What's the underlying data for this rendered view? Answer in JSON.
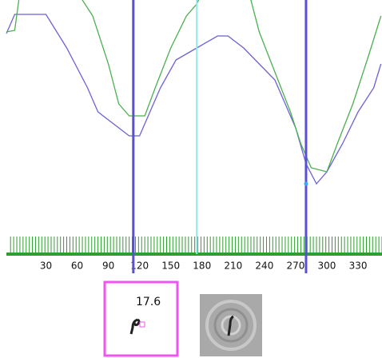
{
  "chart_data": {
    "type": "line",
    "xlim": [
      -8,
      353
    ],
    "ylim": [
      0,
      320
    ],
    "xticks": [
      30,
      60,
      90,
      120,
      150,
      180,
      210,
      240,
      270,
      300,
      330
    ],
    "minor_tick_step": 3,
    "axis_color": "#2e9e2e",
    "series": [
      {
        "color": "#6b62d6",
        "x": [
          -8,
          0,
          30,
          50,
          70,
          80,
          110,
          120,
          130,
          140,
          155,
          175,
          195,
          205,
          220,
          235,
          250,
          260,
          270,
          280,
          290,
          300,
          315,
          330,
          345,
          352
        ],
        "values": [
          278,
          302,
          302,
          260,
          210,
          180,
          150,
          150,
          180,
          210,
          245,
          260,
          275,
          275,
          260,
          240,
          220,
          190,
          160,
          115,
          90,
          105,
          140,
          180,
          210,
          240
        ]
      },
      {
        "color": "#4caf50",
        "x": [
          -8,
          0,
          5,
          60,
          75,
          90,
          100,
          110,
          125,
          135,
          150,
          165,
          175,
          180,
          225,
          235,
          250,
          265,
          275,
          285,
          300,
          310,
          325,
          340,
          352
        ],
        "values": [
          280,
          282,
          330,
          330,
          300,
          240,
          190,
          175,
          175,
          210,
          260,
          300,
          315,
          330,
          330,
          280,
          230,
          180,
          140,
          110,
          105,
          140,
          190,
          250,
          300
        ]
      }
    ],
    "cursors": [
      {
        "x": 114,
        "color": "#5a4fd8"
      },
      {
        "x": 175,
        "color": "#8eeaea"
      },
      {
        "x": 280,
        "color": "#5a4fd8"
      }
    ],
    "cursor_point": {
      "x": 280,
      "y": 90,
      "color": "#33aaff"
    }
  },
  "panel": {
    "readout": "17.6"
  }
}
